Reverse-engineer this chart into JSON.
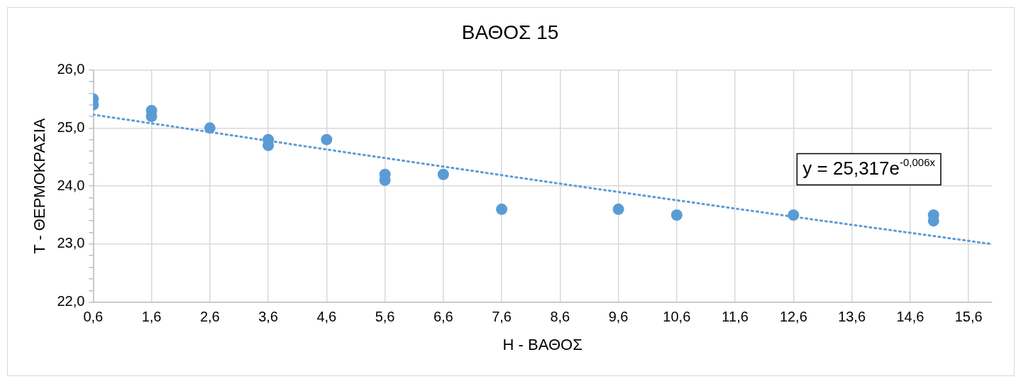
{
  "chart_data": {
    "type": "scatter",
    "title": "ΒΑΘΟΣ 15",
    "xlabel": "Η - ΒΑΘΟΣ",
    "ylabel": "Τ - ΘΕΡΜΟΚΡΑΣΙΑ",
    "xlim": [
      0.6,
      16
    ],
    "ylim": [
      22,
      26
    ],
    "xticks": [
      {
        "value": 0.6,
        "label": "0,6"
      },
      {
        "value": 1.6,
        "label": "1,6"
      },
      {
        "value": 2.6,
        "label": "2,6"
      },
      {
        "value": 3.6,
        "label": "3,6"
      },
      {
        "value": 4.6,
        "label": "4,6"
      },
      {
        "value": 5.6,
        "label": "5,6"
      },
      {
        "value": 6.6,
        "label": "6,6"
      },
      {
        "value": 7.6,
        "label": "7,6"
      },
      {
        "value": 8.6,
        "label": "8,6"
      },
      {
        "value": 9.6,
        "label": "9,6"
      },
      {
        "value": 10.6,
        "label": "10,6"
      },
      {
        "value": 11.6,
        "label": "11,6"
      },
      {
        "value": 12.6,
        "label": "12,6"
      },
      {
        "value": 13.6,
        "label": "13,6"
      },
      {
        "value": 14.6,
        "label": "14,6"
      },
      {
        "value": 15.6,
        "label": "15,6"
      }
    ],
    "yticks": [
      {
        "value": 22,
        "label": "22,0"
      },
      {
        "value": 22.2,
        "label": null
      },
      {
        "value": 22.4,
        "label": null
      },
      {
        "value": 22.6,
        "label": null
      },
      {
        "value": 22.8,
        "label": null
      },
      {
        "value": 23,
        "label": "23,0"
      },
      {
        "value": 23.2,
        "label": null
      },
      {
        "value": 23.4,
        "label": null
      },
      {
        "value": 23.6,
        "label": null
      },
      {
        "value": 23.8,
        "label": null
      },
      {
        "value": 24,
        "label": "24,0"
      },
      {
        "value": 24.2,
        "label": null
      },
      {
        "value": 24.4,
        "label": null
      },
      {
        "value": 24.6,
        "label": null
      },
      {
        "value": 24.8,
        "label": null
      },
      {
        "value": 25,
        "label": "25,0"
      },
      {
        "value": 25.2,
        "label": null
      },
      {
        "value": 25.4,
        "label": null
      },
      {
        "value": 25.6,
        "label": null
      },
      {
        "value": 25.8,
        "label": null
      },
      {
        "value": 26,
        "label": "26,0"
      }
    ],
    "grid": true,
    "legend": false,
    "marker": "circle",
    "annotations": [
      "y = 25,317e$^{-0,006x}$"
    ],
    "series": [
      {
        "color": "#5b9bd5",
        "x": [
          0.6,
          0.6,
          1.6,
          1.6,
          2.6,
          3.6,
          3.6,
          4.6,
          5.6,
          5.6,
          6.6,
          7.6,
          9.6,
          10.6,
          12.6,
          15,
          15
        ],
        "values": [
          25.5,
          25.4,
          25.3,
          25.2,
          25.0,
          24.8,
          24.7,
          24.8,
          24.2,
          24.1,
          24.2,
          23.6,
          23.6,
          23.5,
          23.5,
          23.5,
          23.4
        ]
      },
      {
        "type": "line",
        "color": "#5b9bd5",
        "line_style": "dotted",
        "marker": "none",
        "x": [
          0.6,
          4.6,
          8.6,
          12.6,
          16
        ],
        "values": [
          25.23,
          24.63,
          24.04,
          23.47,
          23.0
        ]
      }
    ]
  }
}
